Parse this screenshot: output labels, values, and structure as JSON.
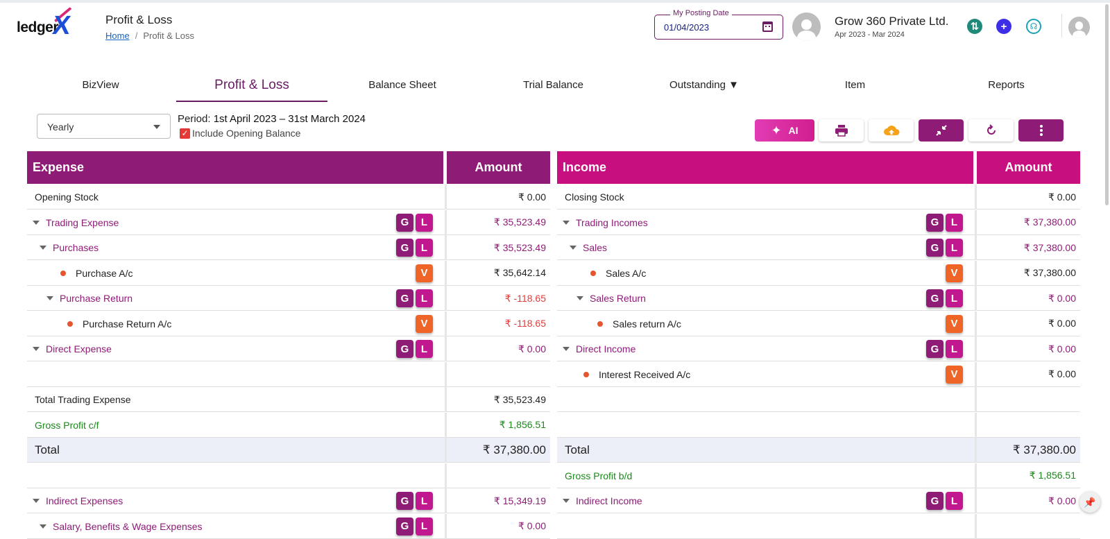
{
  "header": {
    "logo_text": "ledger",
    "logo_mark": "X",
    "page_title": "Profit & Loss",
    "breadcrumb": {
      "home": "Home",
      "separator": "/",
      "current": "Profit & Loss"
    },
    "posting_date_label": "My Posting Date",
    "posting_date_value": "01/04/2023",
    "company_name": "Grow 360 Private Ltd.",
    "financial_year": "Apr 2023 - Mar 2024",
    "icons": [
      "calendar-icon",
      "user-avatar-icon",
      "sync-icon",
      "add-icon",
      "support-headset-icon",
      "profile-avatar-icon"
    ],
    "icon_colors": {
      "sync": "#1f8a7a",
      "add": "#3d2ee8",
      "support": "#1aa3b8"
    }
  },
  "tabs": [
    {
      "label": "BizView",
      "active": false
    },
    {
      "label": "Profit & Loss",
      "active": true
    },
    {
      "label": "Balance Sheet",
      "active": false
    },
    {
      "label": "Trial Balance",
      "active": false
    },
    {
      "label": "Outstanding ▼",
      "active": false
    },
    {
      "label": "Item",
      "active": false
    },
    {
      "label": "Reports",
      "active": false
    }
  ],
  "controls": {
    "period_select_value": "Yearly",
    "period_label": "Period:",
    "period_value": "1st April 2023 – 31st March 2024",
    "include_opening_label": "Include Opening Balance",
    "include_opening_checked": true,
    "ai_label": "AI",
    "toolbar_icons": [
      "sparkles-icon",
      "print-icon",
      "cloud-upload-icon",
      "collapse-icon",
      "refresh-icon",
      "more-vertical-icon"
    ]
  },
  "expense": {
    "header": "Expense",
    "amount_header": "Amount",
    "header_color": "#8e1b76",
    "rows": [
      {
        "label": "Opening Stock",
        "amount": "₹ 0.00",
        "kind": "plain"
      },
      {
        "label": "Trading Expense",
        "amount": "₹ 35,523.49",
        "kind": "group",
        "indent": 0,
        "badges": [
          "G",
          "L"
        ]
      },
      {
        "label": "Purchases",
        "amount": "₹ 35,523.49",
        "kind": "group",
        "indent": 1,
        "badges": [
          "G",
          "L"
        ]
      },
      {
        "label": "Purchase A/c",
        "amount": "₹ 35,642.14",
        "kind": "ledger",
        "indent": 2,
        "badges": [
          "V"
        ]
      },
      {
        "label": "Purchase Return",
        "amount": "₹ -118.65",
        "kind": "group",
        "indent": 2,
        "badges": [
          "G",
          "L"
        ],
        "neg": true
      },
      {
        "label": "Purchase Return A/c",
        "amount": "₹ -118.65",
        "kind": "ledger",
        "indent": 3,
        "badges": [
          "V"
        ],
        "neg": true
      },
      {
        "label": "Direct Expense",
        "amount": "₹ 0.00",
        "kind": "group",
        "indent": 0,
        "badges": [
          "G",
          "L"
        ]
      },
      {
        "label": "",
        "amount": "",
        "kind": "blank"
      },
      {
        "label": "Total Trading Expense",
        "amount": "₹ 35,523.49",
        "kind": "plain"
      },
      {
        "label": "Gross Profit c/f",
        "amount": "₹ 1,856.51",
        "kind": "green"
      },
      {
        "label": "Total",
        "amount": "₹ 37,380.00",
        "kind": "total"
      },
      {
        "label": "",
        "amount": "",
        "kind": "blank"
      },
      {
        "label": "Indirect Expenses",
        "amount": "₹ 15,349.19",
        "kind": "group",
        "indent": 0,
        "badges": [
          "G",
          "L"
        ]
      },
      {
        "label": "Salary, Benefits & Wage Expenses",
        "amount": "₹ 0.00",
        "kind": "group",
        "indent": 1,
        "badges": [
          "G",
          "L"
        ]
      }
    ]
  },
  "income": {
    "header": "Income",
    "amount_header": "Amount",
    "header_color": "#c80f80",
    "rows": [
      {
        "label": "Closing Stock",
        "amount": "₹ 0.00",
        "kind": "plain"
      },
      {
        "label": "Trading Incomes",
        "amount": "₹ 37,380.00",
        "kind": "group",
        "indent": 0,
        "badges": [
          "G",
          "L"
        ]
      },
      {
        "label": "Sales",
        "amount": "₹ 37,380.00",
        "kind": "group",
        "indent": 1,
        "badges": [
          "G",
          "L"
        ]
      },
      {
        "label": "Sales A/c",
        "amount": "₹ 37,380.00",
        "kind": "ledger",
        "indent": 2,
        "badges": [
          "V"
        ]
      },
      {
        "label": "Sales Return",
        "amount": "₹ 0.00",
        "kind": "group",
        "indent": 2,
        "badges": [
          "G",
          "L"
        ]
      },
      {
        "label": "Sales return A/c",
        "amount": "₹ 0.00",
        "kind": "ledger",
        "indent": 3,
        "badges": [
          "V"
        ]
      },
      {
        "label": "Direct Income",
        "amount": "₹ 0.00",
        "kind": "group",
        "indent": 0,
        "badges": [
          "G",
          "L"
        ]
      },
      {
        "label": "Interest Received A/c",
        "amount": "₹ 0.00",
        "kind": "ledger",
        "indent": 1,
        "badges": [
          "V"
        ]
      },
      {
        "label": "",
        "amount": "",
        "kind": "blank"
      },
      {
        "label": "",
        "amount": "",
        "kind": "blank"
      },
      {
        "label": "Total",
        "amount": "₹ 37,380.00",
        "kind": "total"
      },
      {
        "label": "Gross Profit b/d",
        "amount": "₹ 1,856.51",
        "kind": "green"
      },
      {
        "label": "Indirect Income",
        "amount": "₹ 0.00",
        "kind": "group",
        "indent": 0,
        "badges": [
          "G",
          "L"
        ]
      },
      {
        "label": "",
        "amount": "",
        "kind": "blank"
      }
    ]
  }
}
